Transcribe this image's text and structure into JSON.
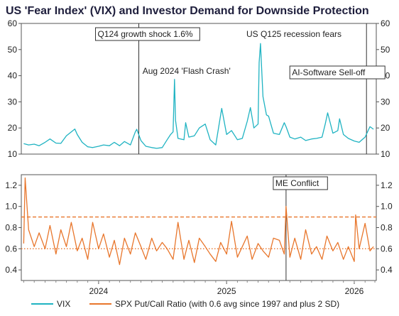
{
  "chart_data": {
    "title": "US 'Fear Index' (VIX) and Investor Demand for Downside Protection",
    "x_ticks": [
      "2024",
      "2025",
      "2026"
    ],
    "colors": {
      "vix": "#1fb3c2",
      "putcall": "#e8762c",
      "avg_line": "#e8762c"
    },
    "legend": [
      {
        "name": "VIX",
        "color": "#1fb3c2"
      },
      {
        "name": "SPX Put/Call Ratio (with 0.6 avg since 1997 and plus 2 SD)",
        "color": "#e8762c"
      }
    ],
    "top_panel": {
      "type": "line",
      "series_name": "VIX",
      "ylim": [
        10,
        60
      ],
      "y_ticks": [
        10,
        20,
        30,
        40,
        50,
        60
      ],
      "grid": false,
      "x": [
        "2023-06-01",
        "2023-06-15",
        "2023-07-01",
        "2023-07-15",
        "2023-08-01",
        "2023-08-15",
        "2023-09-01",
        "2023-09-15",
        "2023-10-01",
        "2023-10-15",
        "2023-10-25",
        "2023-11-01",
        "2023-11-15",
        "2023-12-01",
        "2023-12-15",
        "2024-01-01",
        "2024-01-15",
        "2024-02-01",
        "2024-02-15",
        "2024-03-01",
        "2024-03-15",
        "2024-04-01",
        "2024-04-15",
        "2024-04-19",
        "2024-05-01",
        "2024-05-15",
        "2024-06-01",
        "2024-06-15",
        "2024-07-01",
        "2024-07-15",
        "2024-07-25",
        "2024-08-01",
        "2024-08-05",
        "2024-08-08",
        "2024-08-15",
        "2024-09-01",
        "2024-09-06",
        "2024-09-15",
        "2024-10-01",
        "2024-10-15",
        "2024-11-01",
        "2024-11-15",
        "2024-12-01",
        "2024-12-18",
        "2025-01-01",
        "2025-01-15",
        "2025-02-01",
        "2025-02-15",
        "2025-03-01",
        "2025-03-10",
        "2025-03-20",
        "2025-04-01",
        "2025-04-04",
        "2025-04-08",
        "2025-04-15",
        "2025-04-25",
        "2025-05-01",
        "2025-05-15",
        "2025-06-01",
        "2025-06-15",
        "2025-06-20",
        "2025-07-01",
        "2025-07-15",
        "2025-08-01",
        "2025-08-15",
        "2025-09-01",
        "2025-09-15",
        "2025-10-01",
        "2025-10-10",
        "2025-10-17",
        "2025-11-01",
        "2025-11-15",
        "2025-11-20",
        "2025-12-01",
        "2025-12-15",
        "2026-01-01",
        "2026-01-15",
        "2026-02-01",
        "2026-02-15",
        "2026-02-25"
      ],
      "values": [
        14,
        13.5,
        13.8,
        13.2,
        14.5,
        15.8,
        14.2,
        14.1,
        17,
        18.5,
        19.6,
        17.5,
        14.5,
        12.8,
        12.5,
        13,
        13.5,
        13.2,
        14.5,
        13.2,
        14.8,
        13.5,
        18.5,
        19.5,
        15.2,
        13,
        12.5,
        12.2,
        12.5,
        15.5,
        17.5,
        18.5,
        38.6,
        23,
        16,
        15.5,
        22,
        16.5,
        17,
        20,
        21.5,
        15.5,
        13.5,
        27.5,
        17.5,
        19,
        15.5,
        16,
        22.5,
        27.8,
        20,
        21.5,
        45,
        52.3,
        32,
        25,
        24.5,
        18,
        17.5,
        22,
        20.5,
        16.5,
        15.8,
        16.5,
        15.2,
        15.8,
        16,
        16.5,
        21.5,
        25.8,
        18,
        19,
        23.5,
        17.5,
        16,
        15,
        14.5,
        16.5,
        20.5,
        19.5
      ],
      "annotations": [
        {
          "label": "Q124 growth shock 1.6%",
          "date": "2024-04-25",
          "boxed": true
        },
        {
          "label": "Aug 2024 'Flash Crash'",
          "date": "2024-08-05",
          "boxed": false
        },
        {
          "label": "US Q125 recession fears",
          "date": "2025-04-08",
          "boxed": false
        },
        {
          "label": "AI-Software Sell-off",
          "date": "2026-02-05",
          "boxed": true
        }
      ]
    },
    "bottom_panel": {
      "type": "line",
      "series_name": "SPX Put/Call Ratio (with 0.6 avg since 1997 and plus 2 SD)",
      "ylim": [
        0.3,
        1.3
      ],
      "y_ticks": [
        0.4,
        0.6,
        0.8,
        1.0,
        1.2
      ],
      "y_tick_labels": [
        "0.4",
        "0.6",
        "0.8",
        "1.0",
        "1.2"
      ],
      "grid": false,
      "reference_lines": [
        {
          "value": 0.6,
          "style": "dotted"
        },
        {
          "value": 0.9,
          "style": "dashed"
        }
      ],
      "x": [
        "2023-06-01",
        "2023-06-05",
        "2023-06-15",
        "2023-07-01",
        "2023-07-15",
        "2023-08-01",
        "2023-08-15",
        "2023-09-01",
        "2023-09-15",
        "2023-10-01",
        "2023-10-15",
        "2023-11-01",
        "2023-11-15",
        "2023-12-01",
        "2023-12-15",
        "2024-01-01",
        "2024-01-15",
        "2024-02-01",
        "2024-02-15",
        "2024-03-01",
        "2024-03-15",
        "2024-04-01",
        "2024-04-15",
        "2024-05-01",
        "2024-05-15",
        "2024-06-01",
        "2024-06-15",
        "2024-07-01",
        "2024-07-15",
        "2024-08-01",
        "2024-08-15",
        "2024-09-01",
        "2024-09-15",
        "2024-10-01",
        "2024-10-15",
        "2024-11-01",
        "2024-11-15",
        "2024-12-01",
        "2024-12-15",
        "2025-01-01",
        "2025-01-15",
        "2025-02-01",
        "2025-02-15",
        "2025-03-01",
        "2025-03-15",
        "2025-04-01",
        "2025-04-15",
        "2025-05-01",
        "2025-05-15",
        "2025-06-01",
        "2025-06-15",
        "2025-06-20",
        "2025-07-01",
        "2025-07-15",
        "2025-08-01",
        "2025-08-15",
        "2025-09-01",
        "2025-09-15",
        "2025-10-01",
        "2025-10-15",
        "2025-11-01",
        "2025-11-15",
        "2025-12-01",
        "2025-12-15",
        "2026-01-01",
        "2026-01-05",
        "2026-01-15",
        "2026-02-01",
        "2026-02-15",
        "2026-02-25"
      ],
      "values": [
        0.65,
        1.27,
        0.78,
        0.62,
        0.75,
        0.6,
        0.82,
        0.55,
        0.78,
        0.62,
        0.85,
        0.58,
        0.7,
        0.5,
        0.85,
        0.6,
        0.74,
        0.52,
        0.68,
        0.45,
        0.7,
        0.55,
        0.75,
        0.62,
        0.5,
        0.7,
        0.58,
        0.66,
        0.6,
        0.5,
        0.85,
        0.5,
        0.68,
        0.47,
        0.7,
        0.62,
        0.55,
        0.48,
        0.66,
        0.55,
        0.86,
        0.52,
        0.62,
        0.72,
        0.5,
        0.65,
        0.58,
        0.52,
        0.7,
        0.68,
        0.55,
        1.0,
        0.52,
        0.7,
        0.5,
        0.78,
        0.55,
        0.62,
        0.5,
        0.72,
        0.58,
        0.66,
        0.5,
        0.62,
        0.48,
        0.92,
        0.6,
        0.84,
        0.58,
        0.62
      ],
      "annotations": [
        {
          "label": "ME Conflict",
          "date": "2025-06-20",
          "boxed": true
        }
      ]
    }
  }
}
